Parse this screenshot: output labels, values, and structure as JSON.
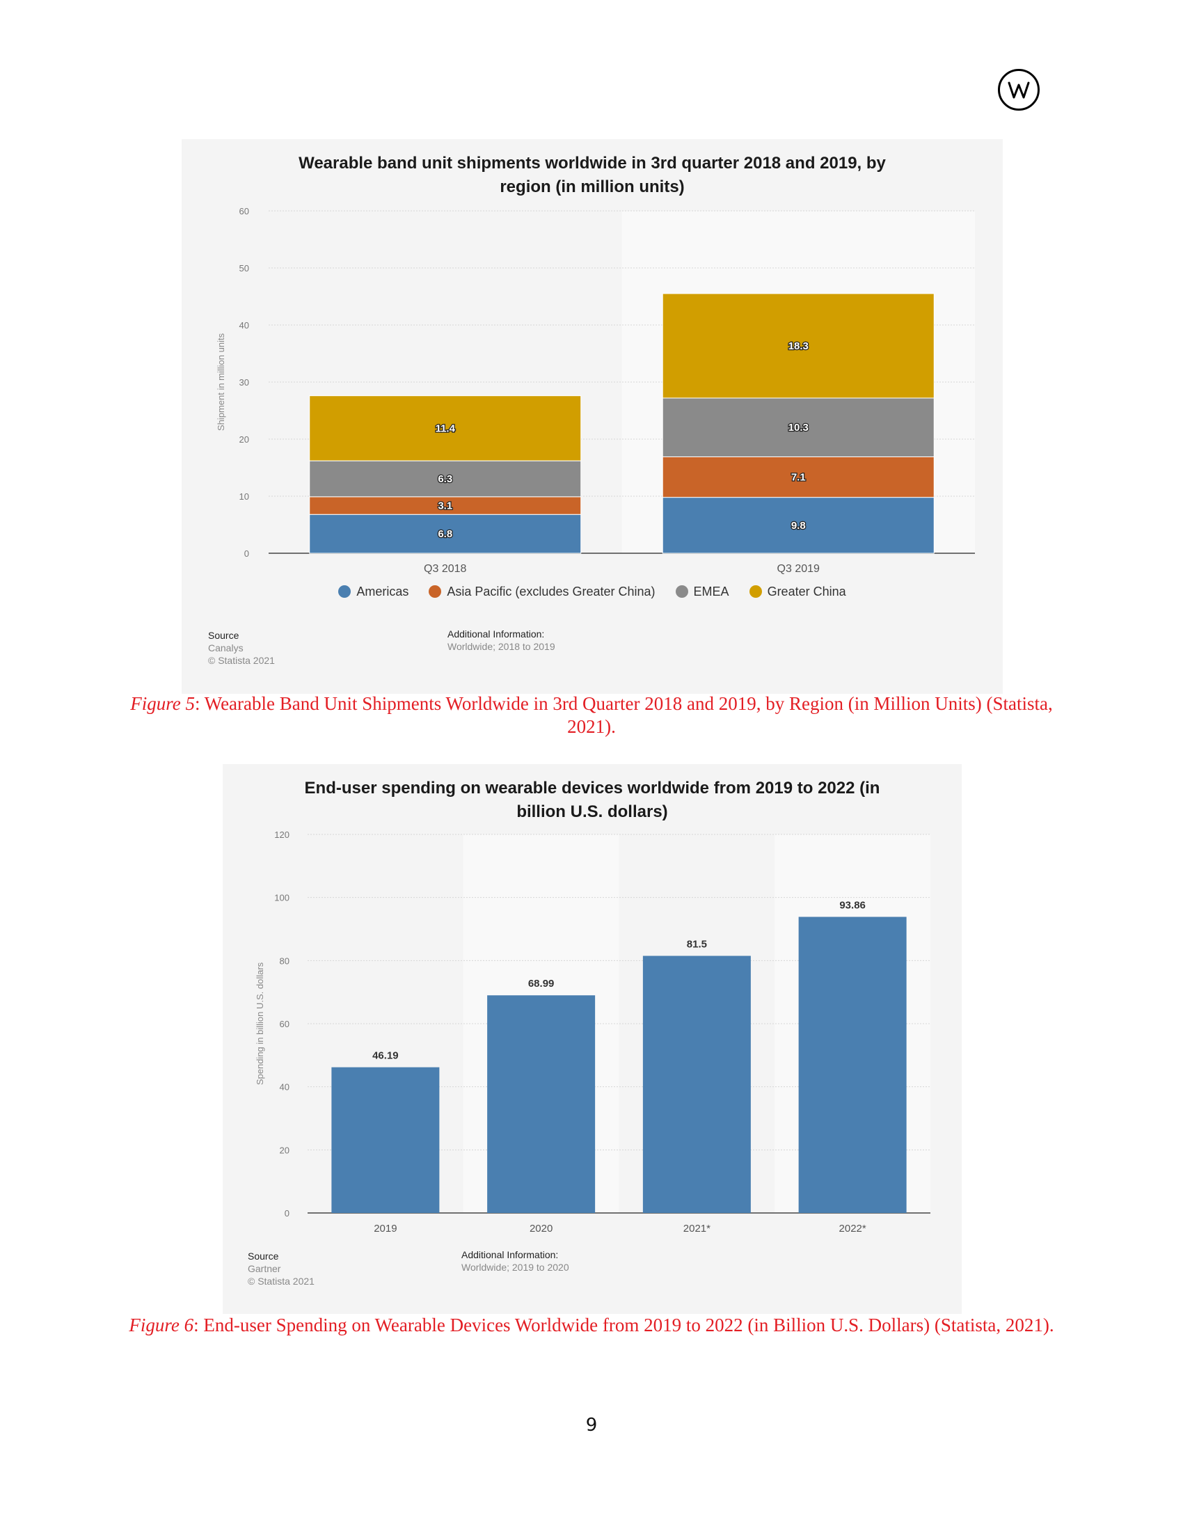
{
  "page": {
    "logo_text": "W",
    "page_number": "9"
  },
  "chart_data": [
    {
      "type": "bar",
      "stacked": true,
      "title_lines": [
        "Wearable band unit shipments worldwide in 3rd quarter 2018 and 2019, by",
        "region (in million units)"
      ],
      "categories": [
        "Q3 2018",
        "Q3 2019"
      ],
      "series": [
        {
          "name": "Americas",
          "values": [
            6.8,
            9.8
          ],
          "color": "#4a7fb0"
        },
        {
          "name": "Asia Pacific (excludes Greater China)",
          "values": [
            3.1,
            7.1
          ],
          "color": "#c96428"
        },
        {
          "name": "EMEA",
          "values": [
            6.3,
            10.3
          ],
          "color": "#8a8a8a"
        },
        {
          "name": "Greater China",
          "values": [
            11.4,
            18.3
          ],
          "color": "#d19e00"
        }
      ],
      "value_labels": [
        [
          "6.8",
          "3.1",
          "6.3",
          "11.4"
        ],
        [
          "9.8",
          "7.1",
          "10.3",
          "18.3"
        ]
      ],
      "ylabel": "Shipment in million units",
      "ylim": [
        0,
        60
      ],
      "yticks": [
        0,
        10,
        20,
        30,
        40,
        50,
        60
      ],
      "grid": true,
      "legend_position": "bottom",
      "source_heading": "Source",
      "source_lines": [
        "Canalys",
        "© Statista 2021"
      ],
      "additional_info_heading": "Additional Information:",
      "additional_info_text": "Worldwide; 2018 to 2019"
    },
    {
      "type": "bar",
      "title_lines": [
        "End-user spending on wearable devices worldwide from 2019 to 2022 (in",
        "billion U.S. dollars)"
      ],
      "categories": [
        "2019",
        "2020",
        "2021*",
        "2022*"
      ],
      "values": [
        46.19,
        68.99,
        81.5,
        93.86
      ],
      "value_labels": [
        "46.19",
        "68.99",
        "81.5",
        "93.86"
      ],
      "color": "#4a7fb0",
      "ylabel": "Spending in billion U.S. dollars",
      "ylim": [
        0,
        120
      ],
      "yticks": [
        0,
        20,
        40,
        60,
        80,
        100,
        120
      ],
      "grid": true,
      "source_heading": "Source",
      "source_lines": [
        "Gartner",
        "© Statista 2021"
      ],
      "additional_info_heading": "Additional Information:",
      "additional_info_text": "Worldwide; 2019 to 2020"
    }
  ],
  "captions": [
    {
      "figure_label": "Figure 5",
      "text": ": Wearable Band Unit Shipments Worldwide in 3rd Quarter 2018 and 2019, by Region (in Million Units) (Statista, 2021)."
    },
    {
      "figure_label": "Figure 6",
      "text": ": End-user Spending on Wearable Devices Worldwide from 2019 to 2022 (in Billion U.S. Dollars) (Statista, 2021)."
    }
  ]
}
